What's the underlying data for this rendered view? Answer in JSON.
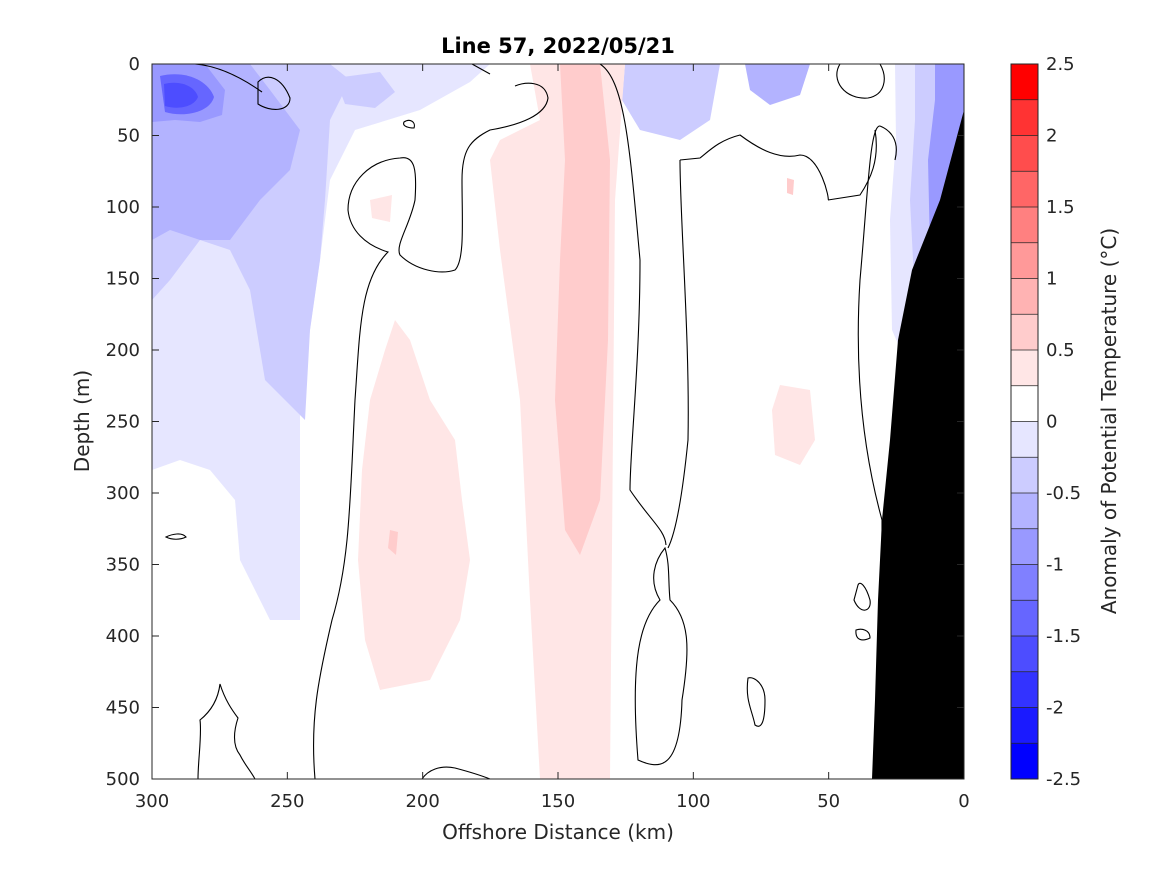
{
  "chart_data": {
    "type": "contour",
    "title": "Line 57, 2022/05/21",
    "xlabel": "Offshore Distance (km)",
    "ylabel": "Depth (m)",
    "xlim": [
      300,
      0
    ],
    "ylim": [
      500,
      0
    ],
    "x_reversed": true,
    "y_reversed": true,
    "xticks": [
      300,
      250,
      200,
      150,
      100,
      50,
      0
    ],
    "yticks": [
      0,
      50,
      100,
      150,
      200,
      250,
      300,
      350,
      400,
      450,
      500
    ],
    "colorbar": {
      "label": "Anomaly of Potential Temperature (°C)",
      "range": [
        -2.5,
        2.5
      ],
      "ticks": [
        -2.5,
        -2,
        -1.5,
        -1,
        -0.5,
        0,
        0.5,
        1,
        1.5,
        2,
        2.5
      ],
      "tick_labels": [
        "-2.5",
        "-2",
        "-1.5",
        "-1",
        "-0.5",
        "0",
        "0.5",
        "1",
        "1.5",
        "2",
        "2.5"
      ],
      "levels": [
        -2.5,
        -2.25,
        -2.0,
        -1.75,
        -1.5,
        -1.25,
        -1.0,
        -0.75,
        -0.5,
        -0.25,
        0,
        0.25,
        0.5,
        0.75,
        1.0,
        1.25,
        1.5,
        1.75,
        2.0,
        2.25,
        2.5
      ],
      "colors": [
        "#0000ff",
        "#1a1aff",
        "#3333ff",
        "#4d4dff",
        "#6666ff",
        "#8080ff",
        "#9999ff",
        "#b3b3ff",
        "#ccccff",
        "#e6e6ff",
        "#ffffff",
        "#ffffff",
        "#ffe6e6",
        "#ffcccc",
        "#ffb3b3",
        "#ff9999",
        "#ff8080",
        "#ff6666",
        "#ff4d4d",
        "#ff3333",
        "#ff0000"
      ]
    },
    "contour_level_drawn": 0,
    "bathymetry_color": "#000000",
    "regions": [
      {
        "name": "offshore cold anomaly",
        "anomaly": -0.5,
        "x_range_km": [
          240,
          300
        ],
        "depth_range_m": [
          0,
          390
        ]
      },
      {
        "name": "surface cold core",
        "anomaly": -1.5,
        "x_range_km": [
          280,
          300
        ],
        "depth_range_m": [
          10,
          35
        ]
      },
      {
        "name": "warm band",
        "anomaly": 0.5,
        "x_range_km": [
          130,
          160
        ],
        "depth_range_m": [
          0,
          500
        ]
      },
      {
        "name": "warm band core",
        "anomaly": 0.75,
        "x_range_km": [
          135,
          155
        ],
        "depth_range_m": [
          0,
          340
        ]
      },
      {
        "name": "subsurface warm patch",
        "anomaly": 0.25,
        "x_range_km": [
          185,
          220
        ],
        "depth_range_m": [
          180,
          440
        ]
      },
      {
        "name": "nearshore cold anomaly",
        "anomaly": -0.75,
        "x_range_km": [
          0,
          25
        ],
        "depth_range_m": [
          0,
          200
        ]
      },
      {
        "name": "small warm patch",
        "anomaly": 0.25,
        "x_range_km": [
          60,
          70
        ],
        "depth_range_m": [
          230,
          300
        ]
      }
    ]
  }
}
